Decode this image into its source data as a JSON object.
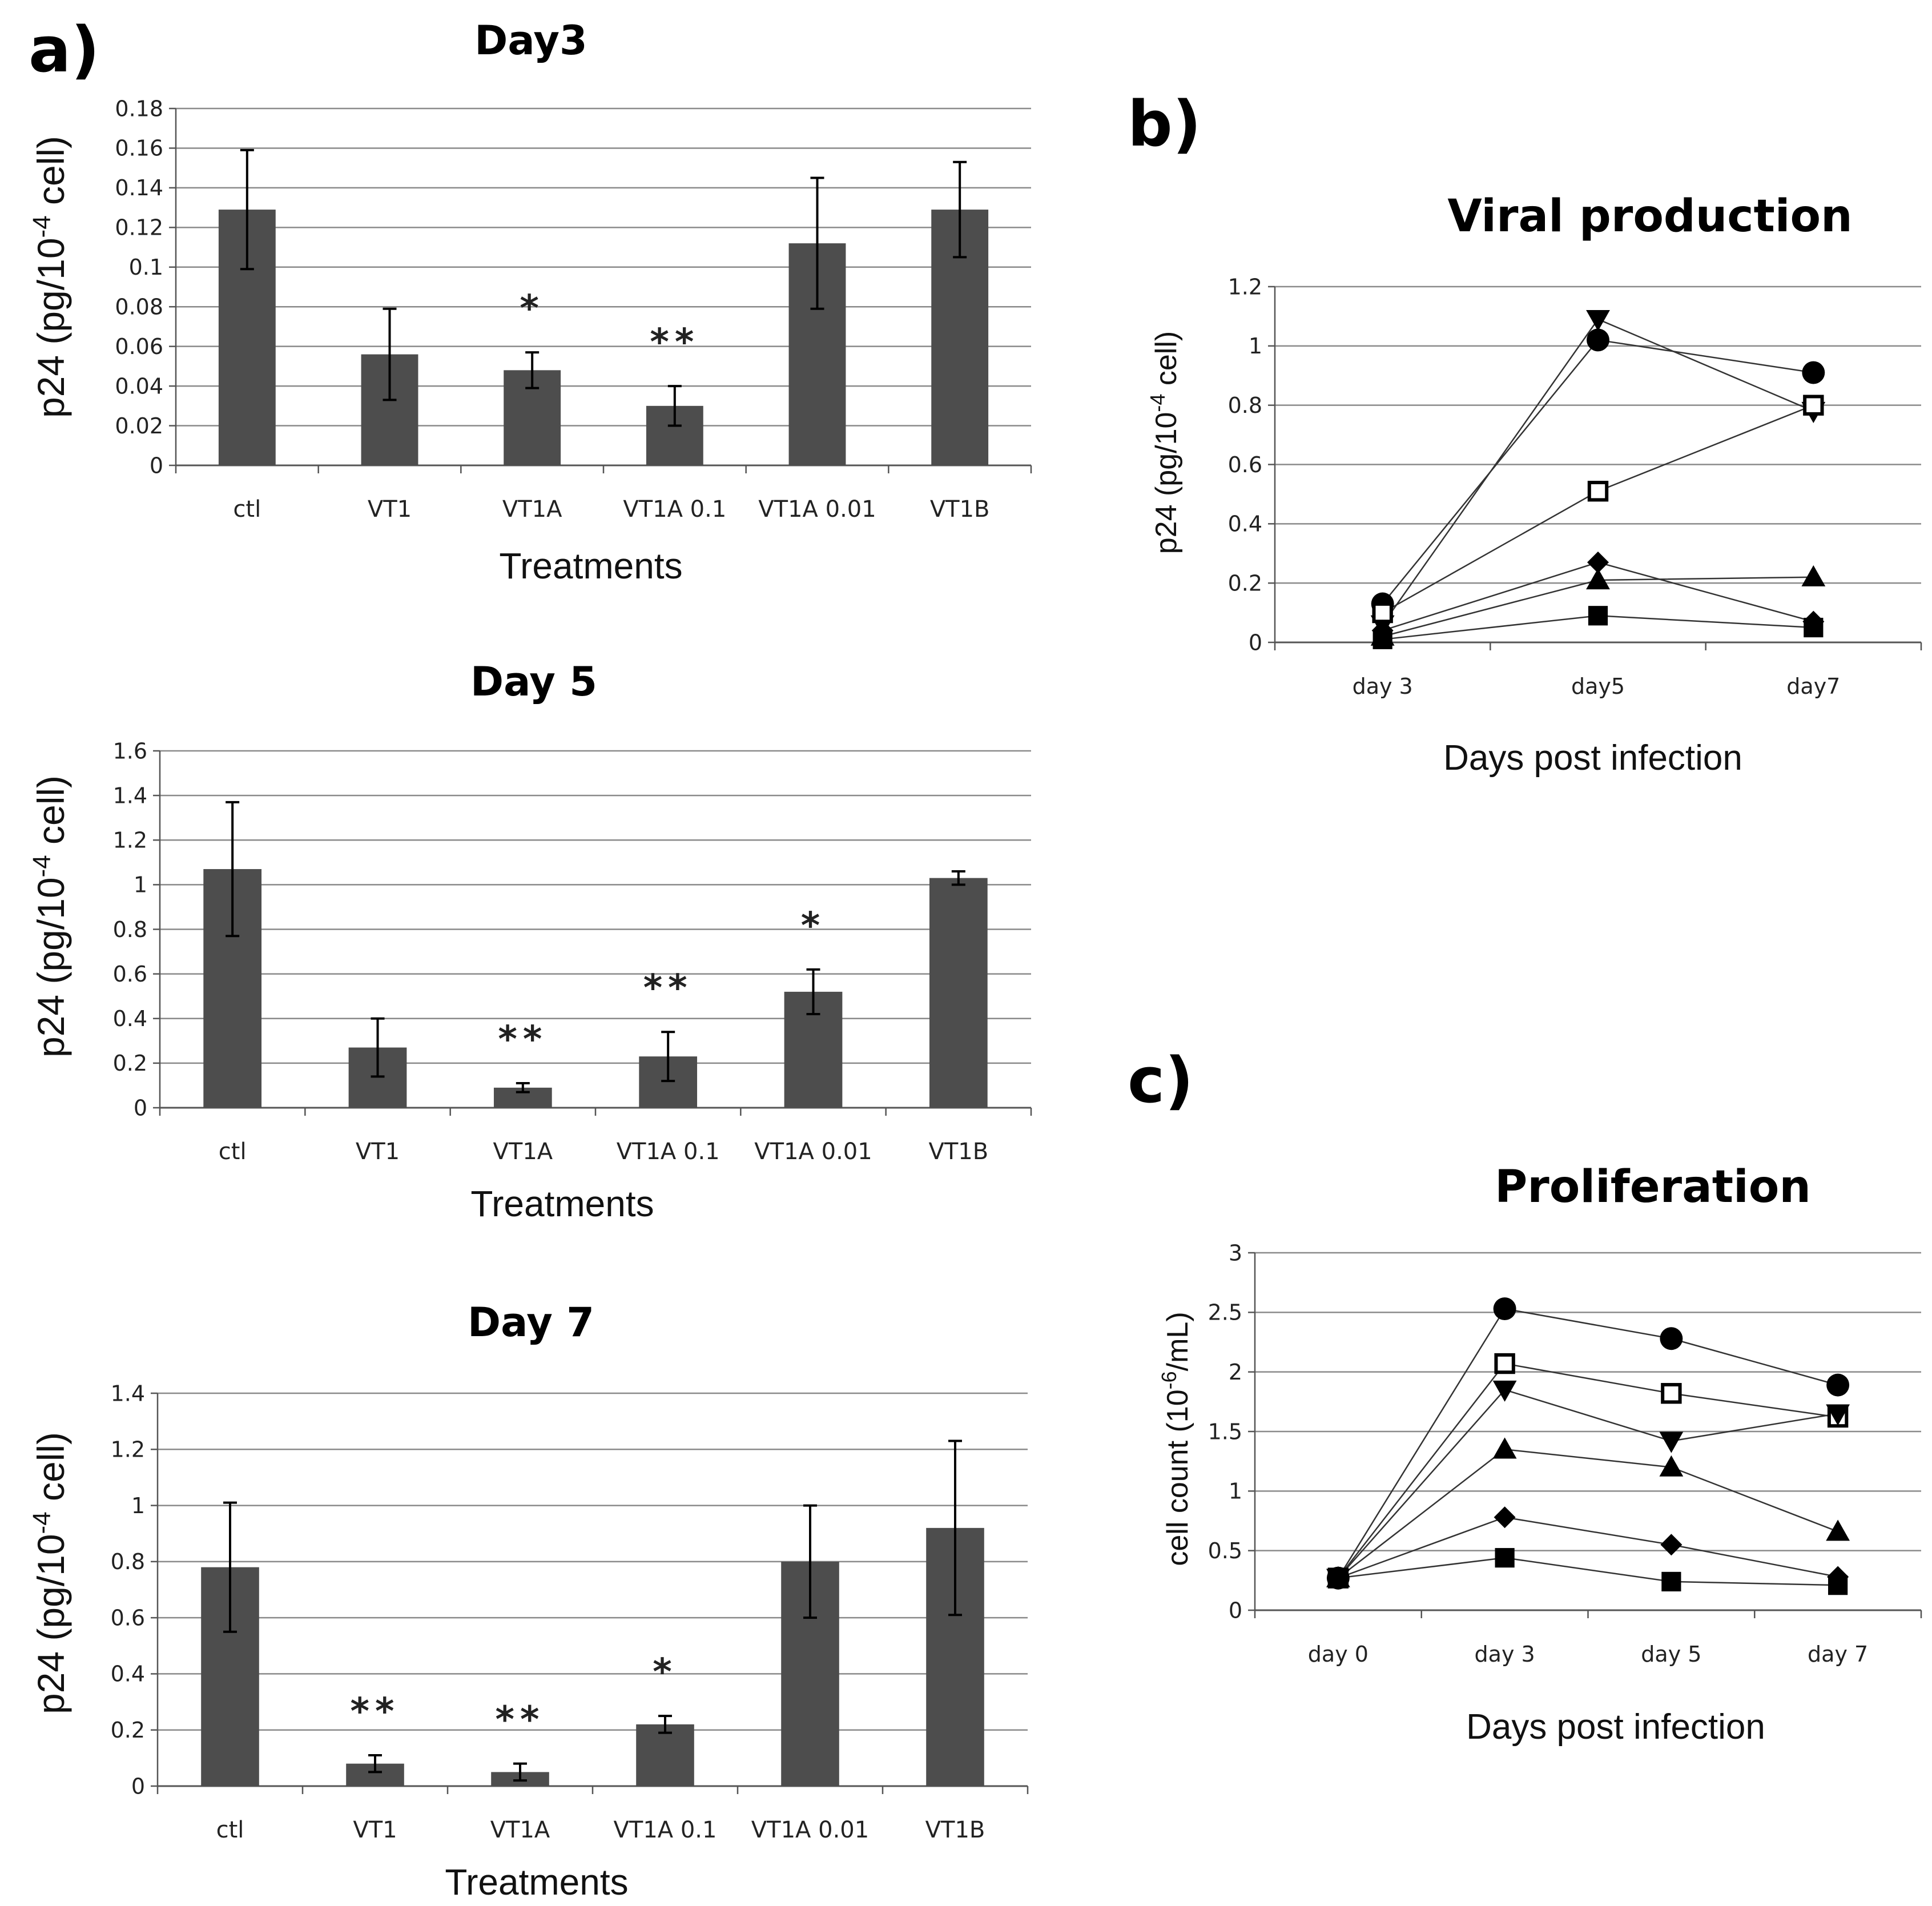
{
  "figure": {
    "panel_labels": [
      "a)",
      "b)",
      "c)"
    ]
  },
  "chart_data": [
    {
      "type": "bar",
      "panel": "a)",
      "title": "Day3",
      "xlabel": "Treatments",
      "ylabel": "p24 (pg/10-4 cell)",
      "ylabel_parts": {
        "pre": "p24 (pg/10",
        "sup": "-4",
        "post": " cell)"
      },
      "categories": [
        "ctl",
        "VT1",
        "VT1A",
        "VT1A 0.1",
        "VT1A 0.01",
        "VT1B"
      ],
      "values": [
        0.129,
        0.056,
        0.048,
        0.03,
        0.112,
        0.129
      ],
      "errors": [
        0.03,
        0.023,
        0.009,
        0.01,
        0.033,
        0.024
      ],
      "significance": [
        "",
        "",
        "*",
        "**",
        "",
        ""
      ],
      "ylim": [
        0,
        0.18
      ],
      "yticks": [
        0,
        0.02,
        0.04,
        0.06,
        0.08,
        0.1,
        0.12,
        0.14,
        0.16,
        0.18
      ],
      "ytick_labels": [
        "0",
        "0.02",
        "0.04",
        "0.06",
        "0.08",
        "0.1",
        "0.12",
        "0.14",
        "0.16",
        "0.18"
      ],
      "grid": true,
      "bar_color": "#4d4d4d"
    },
    {
      "type": "bar",
      "panel": "a)",
      "title": "Day 5",
      "xlabel": "Treatments",
      "ylabel": "p24 (pg/10-4 cell)",
      "ylabel_parts": {
        "pre": "p24 (pg/10",
        "sup": "-4",
        "post": " cell)"
      },
      "categories": [
        "ctl",
        "VT1",
        "VT1A",
        "VT1A 0.1",
        "VT1A 0.01",
        "VT1B"
      ],
      "values": [
        1.07,
        0.27,
        0.09,
        0.23,
        0.52,
        1.03
      ],
      "errors": [
        0.3,
        0.13,
        0.02,
        0.11,
        0.1,
        0.03
      ],
      "significance": [
        "",
        "",
        "**",
        "**",
        "*",
        ""
      ],
      "ylim": [
        0,
        1.6
      ],
      "yticks": [
        0,
        0.2,
        0.4,
        0.6,
        0.8,
        1,
        1.2,
        1.4,
        1.6
      ],
      "ytick_labels": [
        "0",
        "0.2",
        "0.4",
        "0.6",
        "0.8",
        "1",
        "1.2",
        "1.4",
        "1.6"
      ],
      "grid": true,
      "bar_color": "#4d4d4d"
    },
    {
      "type": "bar",
      "panel": "a)",
      "title": "Day 7",
      "xlabel": "Treatments",
      "ylabel": "p24 (pg/10-4 cell)",
      "ylabel_parts": {
        "pre": "p24 (pg/10",
        "sup": "-4",
        "post": " cell)"
      },
      "categories": [
        "ctl",
        "VT1",
        "VT1A",
        "VT1A 0.1",
        "VT1A 0.01",
        "VT1B"
      ],
      "values": [
        0.78,
        0.08,
        0.05,
        0.22,
        0.8,
        0.92
      ],
      "errors": [
        0.23,
        0.03,
        0.03,
        0.03,
        0.2,
        0.31
      ],
      "significance": [
        "",
        "**",
        "**",
        "*",
        "",
        ""
      ],
      "ylim": [
        0,
        1.4
      ],
      "yticks": [
        0,
        0.2,
        0.4,
        0.6,
        0.8,
        1,
        1.2,
        1.4
      ],
      "ytick_labels": [
        "0",
        "0.2",
        "0.4",
        "0.6",
        "0.8",
        "1",
        "1.2",
        "1.4"
      ],
      "grid": true,
      "bar_color": "#4d4d4d"
    },
    {
      "type": "line",
      "panel": "b)",
      "title": "Viral production",
      "xlabel": "Days post infection",
      "ylabel": "p24 (pg/10-4 cell)",
      "ylabel_parts": {
        "pre": "p24 (pg/10",
        "sup": "-4",
        "post": " cell)"
      },
      "categories": [
        "day 3",
        "day5",
        "day7"
      ],
      "series": [
        {
          "marker": "circle",
          "values": [
            0.13,
            1.02,
            0.91
          ]
        },
        {
          "marker": "triangle-down",
          "values": [
            0.06,
            1.09,
            0.78
          ]
        },
        {
          "marker": "square-open",
          "values": [
            0.1,
            0.51,
            0.8
          ]
        },
        {
          "marker": "diamond",
          "values": [
            0.04,
            0.27,
            0.07
          ]
        },
        {
          "marker": "triangle",
          "values": [
            0.02,
            0.21,
            0.22
          ]
        },
        {
          "marker": "square",
          "values": [
            0.01,
            0.09,
            0.05
          ]
        }
      ],
      "ylim": [
        0,
        1.2
      ],
      "yticks": [
        0,
        0.2,
        0.4,
        0.6,
        0.8,
        1,
        1.2
      ],
      "ytick_labels": [
        "0",
        "0.2",
        "0.4",
        "0.6",
        "0.8",
        "1",
        "1.2"
      ],
      "grid": true,
      "legend": "none"
    },
    {
      "type": "line",
      "panel": "c)",
      "title": "Proliferation",
      "xlabel": "Days post infection",
      "ylabel": "cell count (10-6/mL)",
      "ylabel_parts": {
        "pre": "cell count (10",
        "sup": "-6",
        "post": "/mL)"
      },
      "categories": [
        "day 0",
        "day 3",
        "day 5",
        "day 7"
      ],
      "series": [
        {
          "marker": "circle",
          "values": [
            0.27,
            2.53,
            2.28,
            1.89
          ]
        },
        {
          "marker": "square-open",
          "values": [
            0.27,
            2.07,
            1.82,
            1.62
          ]
        },
        {
          "marker": "triangle-down",
          "values": [
            0.27,
            1.85,
            1.42,
            1.65
          ]
        },
        {
          "marker": "triangle",
          "values": [
            0.27,
            1.35,
            1.2,
            0.66
          ]
        },
        {
          "marker": "diamond",
          "values": [
            0.27,
            0.78,
            0.55,
            0.28
          ]
        },
        {
          "marker": "square",
          "values": [
            0.27,
            0.44,
            0.24,
            0.21
          ]
        }
      ],
      "ylim": [
        0,
        3
      ],
      "yticks": [
        0,
        0.5,
        1,
        1.5,
        2,
        2.5,
        3
      ],
      "ytick_labels": [
        "0",
        "0.5",
        "1",
        "1.5",
        "2",
        "2.5",
        "3"
      ],
      "grid": true,
      "legend": "none"
    }
  ]
}
